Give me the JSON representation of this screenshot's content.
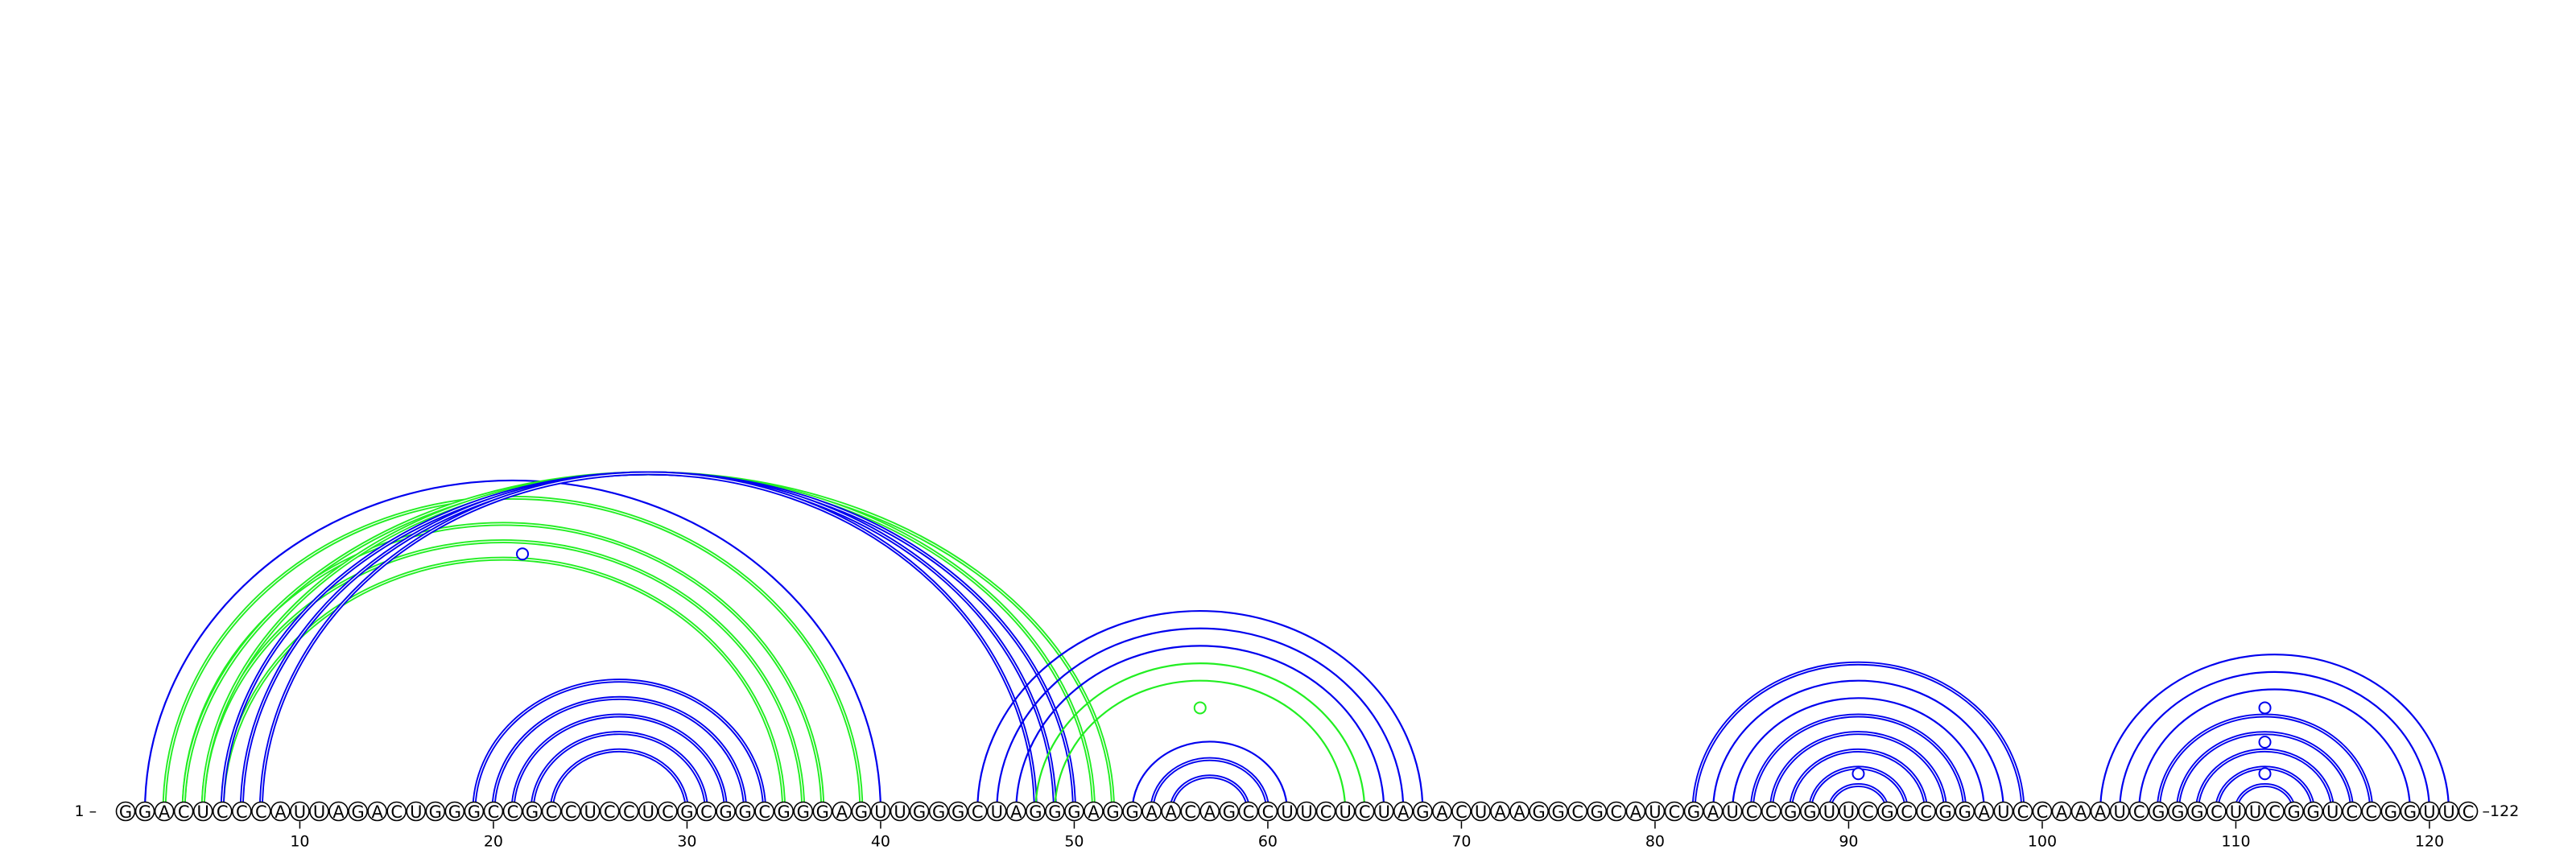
{
  "diagram": {
    "sequence": "GGACUCCCAUUAGACUGGGCCGCCUCCUCGCGGCGGGAGUUGGGCUAGGGAGGAACAGCCUUCUCUAGACUAAGGCGCAUCGAUCCGGUUCGCCGGAUCCAAAUCGGGCUUCGGUCCGGUUC",
    "start_label": "1 –",
    "end_label": "–122",
    "ticks": [
      "10",
      "20",
      "30",
      "40",
      "50",
      "60",
      "70",
      "80",
      "90",
      "100",
      "110",
      "120"
    ],
    "colors": {
      "blue": "#0000ee",
      "green": "#22ee22"
    },
    "arcs": [
      {
        "i": 2,
        "j": 40,
        "color": "blue",
        "double": false
      },
      {
        "i": 3,
        "j": 39,
        "color": "green",
        "double": true
      },
      {
        "i": 4,
        "j": 37,
        "color": "green",
        "double": true
      },
      {
        "i": 5,
        "j": 36,
        "color": "green",
        "double": true
      },
      {
        "i": 6,
        "j": 35,
        "color": "green",
        "double": true
      },
      {
        "i": 4,
        "j": 52,
        "color": "green",
        "double": true
      },
      {
        "i": 5,
        "j": 51,
        "color": "green",
        "double": true
      },
      {
        "i": 6,
        "j": 50,
        "color": "blue",
        "double": true
      },
      {
        "i": 7,
        "j": 49,
        "color": "blue",
        "double": true
      },
      {
        "i": 8,
        "j": 48,
        "color": "blue",
        "double": true
      },
      {
        "i": 19,
        "j": 34,
        "color": "blue",
        "double": true
      },
      {
        "i": 20,
        "j": 33,
        "color": "blue",
        "double": true
      },
      {
        "i": 21,
        "j": 32,
        "color": "blue",
        "double": true
      },
      {
        "i": 22,
        "j": 31,
        "color": "blue",
        "double": true
      },
      {
        "i": 23,
        "j": 30,
        "color": "blue",
        "double": true
      },
      {
        "i": 45,
        "j": 68,
        "color": "blue",
        "double": false
      },
      {
        "i": 46,
        "j": 67,
        "color": "blue",
        "double": false
      },
      {
        "i": 47,
        "j": 66,
        "color": "blue",
        "double": false
      },
      {
        "i": 48,
        "j": 65,
        "color": "green",
        "double": false
      },
      {
        "i": 49,
        "j": 64,
        "color": "green",
        "double": false
      },
      {
        "i": 53,
        "j": 61,
        "color": "blue",
        "double": false
      },
      {
        "i": 54,
        "j": 60,
        "color": "blue",
        "double": true
      },
      {
        "i": 55,
        "j": 59,
        "color": "blue",
        "double": true
      },
      {
        "i": 82,
        "j": 99,
        "color": "blue",
        "double": true
      },
      {
        "i": 83,
        "j": 98,
        "color": "blue",
        "double": false
      },
      {
        "i": 84,
        "j": 97,
        "color": "blue",
        "double": false
      },
      {
        "i": 85,
        "j": 96,
        "color": "blue",
        "double": true
      },
      {
        "i": 86,
        "j": 95,
        "color": "blue",
        "double": true
      },
      {
        "i": 87,
        "j": 94,
        "color": "blue",
        "double": true
      },
      {
        "i": 88,
        "j": 93,
        "color": "blue",
        "double": true
      },
      {
        "i": 89,
        "j": 92,
        "color": "blue",
        "double": true
      },
      {
        "i": 103,
        "j": 121,
        "color": "blue",
        "double": false
      },
      {
        "i": 104,
        "j": 120,
        "color": "blue",
        "double": false
      },
      {
        "i": 105,
        "j": 119,
        "color": "blue",
        "double": false
      },
      {
        "i": 106,
        "j": 117,
        "color": "blue",
        "double": true
      },
      {
        "i": 107,
        "j": 116,
        "color": "blue",
        "double": true
      },
      {
        "i": 108,
        "j": 115,
        "color": "blue",
        "double": true
      },
      {
        "i": 109,
        "j": 114,
        "color": "blue",
        "double": true
      },
      {
        "i": 110,
        "j": 113,
        "color": "blue",
        "double": true
      }
    ],
    "markers": [
      {
        "pos": 21.5,
        "level": 0.92,
        "color": "blue"
      },
      {
        "pos": 56.5,
        "level": 0.88,
        "color": "green"
      },
      {
        "pos": 90.5,
        "level": 0.15,
        "color": "blue"
      },
      {
        "pos": 111.5,
        "level": 0.15,
        "color": "blue"
      },
      {
        "pos": 111.5,
        "level": 0.5,
        "color": "blue"
      },
      {
        "pos": 111.5,
        "level": 0.88,
        "color": "blue"
      }
    ]
  }
}
